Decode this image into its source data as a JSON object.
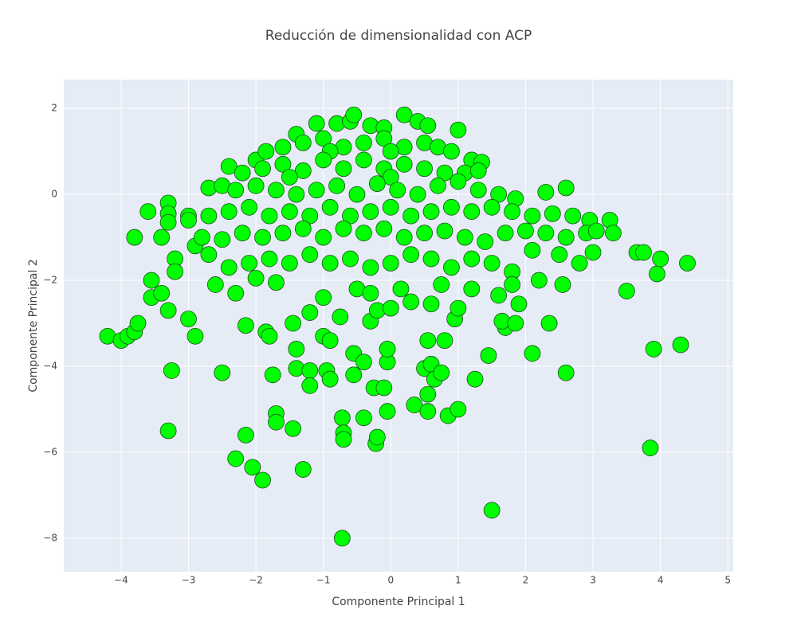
{
  "chart_data": {
    "type": "scatter",
    "title": "Reducción de dimensionalidad con ACP",
    "x_label": "Componente Principal 1",
    "y_label": "Componente Principal 2",
    "color": "#00ff00",
    "grid": true,
    "xlim": [
      -4.85,
      5.08
    ],
    "ylim": [
      -8.78,
      2.67
    ],
    "xticks": [
      {
        "value": -4,
        "label": "−4"
      },
      {
        "value": -3,
        "label": "−3"
      },
      {
        "value": -2,
        "label": "−2"
      },
      {
        "value": -1,
        "label": "−1"
      },
      0,
      1,
      2,
      3,
      4,
      5
    ],
    "yticks": [
      {
        "value": -8,
        "label": "−8"
      },
      {
        "value": -6,
        "label": "−6"
      },
      {
        "value": -4,
        "label": "−4"
      },
      {
        "value": -2,
        "label": "−2"
      },
      0,
      2
    ],
    "x": [
      -4.2,
      -4.0,
      -3.9,
      -3.8,
      -3.75,
      -3.8,
      -3.6,
      -3.55,
      -3.55,
      -3.3,
      -3.3,
      -3.3,
      -3.3,
      -3.25,
      -3.3,
      -3.4,
      -3.4,
      -3.2,
      -3.2,
      -3.0,
      -2.9,
      -3.0,
      -2.9,
      -2.5,
      -2.3,
      -2.15,
      -2.05,
      -1.9,
      -2.15,
      -1.85,
      -1.8,
      -1.75,
      -1.7,
      -1.7,
      -1.45,
      -1.3,
      -1.4,
      -1.4,
      -1.45,
      -1.2,
      -1.2,
      -1.2,
      -1.0,
      -0.95,
      -0.9,
      -0.9,
      -0.75,
      -0.72,
      -0.7,
      -0.7,
      -0.72,
      -0.55,
      -0.55,
      -0.4,
      -0.4,
      -0.3,
      -0.25,
      -0.22,
      -0.2,
      -0.1,
      -0.05,
      -0.05,
      -0.05,
      -0.2,
      0.0,
      0.35,
      0.5,
      0.55,
      0.55,
      0.6,
      0.65,
      0.75,
      0.85,
      1.0,
      1.25,
      1.5,
      1.45,
      1.7,
      1.65,
      1.85,
      2.1,
      2.35,
      2.6,
      3.5,
      3.65,
      3.75,
      3.85,
      3.9,
      3.95,
      4.0,
      4.3,
      4.4,
      0.55,
      0.8,
      0.95,
      1.0,
      0.3,
      0.6,
      1.6,
      1.9,
      -0.8,
      -0.6,
      -0.55,
      -0.3,
      -0.1,
      0.2,
      0.4,
      0.55,
      1.0,
      -1.1,
      -1.4,
      -2.0,
      -1.85,
      -1.6,
      -1.3,
      -1.0,
      -0.7,
      -0.4,
      -0.1,
      0.2,
      0.5,
      0.7,
      0.9,
      1.2,
      1.35,
      -0.9,
      0.0,
      -2.4,
      -2.2,
      -1.9,
      -1.6,
      -1.3,
      -1.0,
      -0.7,
      -0.4,
      -0.1,
      0.2,
      0.5,
      0.8,
      1.1,
      1.3,
      -1.5,
      0.0,
      -2.7,
      -2.5,
      -2.3,
      -2.0,
      -1.7,
      -1.4,
      -1.1,
      -0.8,
      -0.5,
      -0.2,
      0.1,
      0.4,
      0.7,
      1.0,
      1.3,
      1.6,
      1.85,
      2.3,
      2.6,
      -3.0,
      -2.7,
      -2.4,
      -2.1,
      -1.8,
      -1.5,
      -1.2,
      -0.9,
      -0.6,
      -0.3,
      0.0,
      0.3,
      0.6,
      0.9,
      1.2,
      1.5,
      1.8,
      2.1,
      2.4,
      2.7,
      2.95,
      3.25,
      -2.8,
      -2.5,
      -2.2,
      -1.9,
      -1.6,
      -1.3,
      -1.0,
      -0.7,
      -0.4,
      -0.1,
      0.2,
      0.5,
      0.8,
      1.1,
      1.4,
      1.7,
      2.0,
      2.3,
      2.6,
      2.9,
      3.05,
      3.3,
      -2.7,
      -2.4,
      -2.1,
      -1.8,
      -1.5,
      -1.2,
      -0.9,
      -0.6,
      -0.3,
      0.0,
      0.3,
      0.6,
      0.9,
      1.2,
      1.5,
      1.8,
      2.1,
      2.5,
      2.8,
      3.0,
      -2.6,
      -2.3,
      -2.0,
      -1.7,
      -1.0,
      -0.5,
      -0.3,
      0.15,
      0.75,
      1.2,
      1.8,
      2.2,
      2.55
    ],
    "values": [
      -3.3,
      -3.4,
      -3.3,
      -3.2,
      -3.0,
      -1.0,
      -0.4,
      -2.0,
      -2.4,
      -0.2,
      -0.45,
      -0.65,
      -2.7,
      -4.1,
      -5.5,
      -1.0,
      -2.3,
      -1.5,
      -1.8,
      -2.9,
      -3.3,
      -0.5,
      -1.2,
      -4.15,
      -6.15,
      -5.6,
      -6.35,
      -6.65,
      -3.05,
      -3.2,
      -3.3,
      -4.2,
      -5.1,
      -5.3,
      -5.45,
      -6.4,
      -4.05,
      -3.6,
      -3.0,
      -2.75,
      -4.1,
      -4.45,
      -3.3,
      -4.1,
      -4.3,
      -3.4,
      -2.85,
      -5.2,
      -5.55,
      -5.7,
      -8.0,
      -4.2,
      -3.7,
      -5.2,
      -3.9,
      -2.95,
      -4.5,
      -5.8,
      -5.65,
      -4.5,
      -3.9,
      -3.6,
      -5.05,
      -2.7,
      -2.65,
      -4.9,
      -4.05,
      -4.65,
      -5.05,
      -3.95,
      -4.3,
      -4.15,
      -5.15,
      -5.0,
      -4.3,
      -7.35,
      -3.75,
      -3.1,
      -2.95,
      -3.0,
      -3.7,
      -3.0,
      -4.15,
      -2.25,
      -1.35,
      -1.35,
      -5.9,
      -3.6,
      -1.85,
      -1.5,
      -3.5,
      -1.6,
      -3.4,
      -3.4,
      -2.9,
      -2.65,
      -2.5,
      -2.55,
      -2.35,
      -2.55,
      1.65,
      1.7,
      1.85,
      1.6,
      1.55,
      1.85,
      1.7,
      1.6,
      1.5,
      1.65,
      1.4,
      0.8,
      1.0,
      1.1,
      1.2,
      1.3,
      1.1,
      1.2,
      1.3,
      1.1,
      1.2,
      1.1,
      1.0,
      0.8,
      0.75,
      1.0,
      1.0,
      0.65,
      0.5,
      0.6,
      0.7,
      0.55,
      0.8,
      0.6,
      0.8,
      0.6,
      0.7,
      0.6,
      0.5,
      0.5,
      0.55,
      0.4,
      0.4,
      0.15,
      0.2,
      0.1,
      0.2,
      0.1,
      0.0,
      0.1,
      0.2,
      0.0,
      0.25,
      0.1,
      0.0,
      0.2,
      0.3,
      0.1,
      0.0,
      -0.1,
      0.05,
      0.15,
      -0.6,
      -0.5,
      -0.4,
      -0.3,
      -0.5,
      -0.4,
      -0.5,
      -0.3,
      -0.5,
      -0.4,
      -0.3,
      -0.5,
      -0.4,
      -0.3,
      -0.4,
      -0.3,
      -0.4,
      -0.5,
      -0.45,
      -0.5,
      -0.6,
      -0.6,
      -1.0,
      -1.05,
      -0.9,
      -1.0,
      -0.9,
      -0.8,
      -1.0,
      -0.8,
      -0.9,
      -0.8,
      -1.0,
      -0.9,
      -0.85,
      -1.0,
      -1.1,
      -0.9,
      -0.85,
      -0.9,
      -1.0,
      -0.9,
      -0.85,
      -0.9,
      -1.4,
      -1.7,
      -1.6,
      -1.5,
      -1.6,
      -1.4,
      -1.6,
      -1.5,
      -1.7,
      -1.6,
      -1.4,
      -1.5,
      -1.7,
      -1.5,
      -1.6,
      -1.8,
      -1.3,
      -1.4,
      -1.6,
      -1.35,
      -2.1,
      -2.3,
      -1.95,
      -2.05,
      -2.4,
      -2.2,
      -2.3,
      -2.2,
      -2.1,
      -2.2,
      -2.1,
      -2.0,
      -2.1
    ]
  }
}
